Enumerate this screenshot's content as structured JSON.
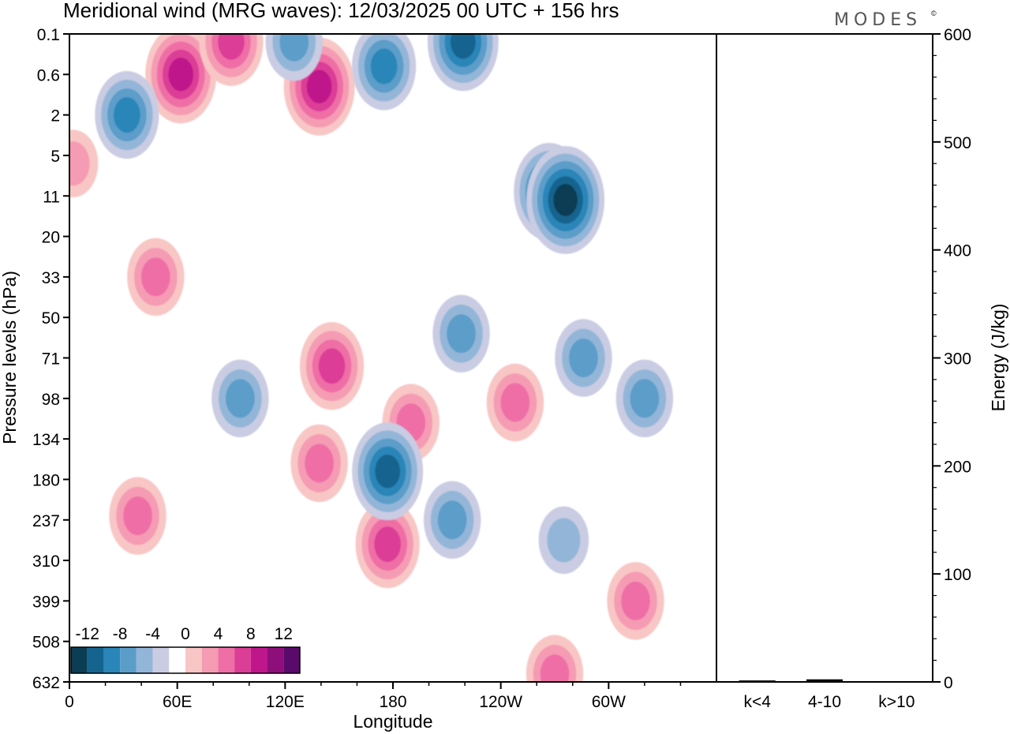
{
  "chart_data": [
    {
      "type": "heatmap",
      "title": "Meridional wind (MRG waves):  12/03/2025  00 UTC  + 156 hrs",
      "xlabel": "Longitude",
      "ylabel": "Pressure levels (hPa)",
      "x_ticks": [
        "0",
        "60E",
        "120E",
        "180",
        "120W",
        "60W"
      ],
      "x_range_deg": [
        0,
        360
      ],
      "y_ticks": [
        "0.1",
        "0.6",
        "2",
        "5",
        "11",
        "20",
        "33",
        "50",
        "71",
        "98",
        "134",
        "180",
        "237",
        "310",
        "399",
        "508",
        "632"
      ],
      "y_axis_inverted": true,
      "colorbar": {
        "labels": [
          "-12",
          "-8",
          "-4",
          "0",
          "4",
          "8",
          "12"
        ],
        "levels": [
          -14,
          -12,
          -10,
          -8,
          -6,
          -4,
          -2,
          2,
          4,
          6,
          8,
          10,
          12,
          14
        ],
        "colors": [
          "#0b3d55",
          "#15648f",
          "#2a85b8",
          "#5b9dc9",
          "#93b6d8",
          "#c9cce2",
          "#ffffff",
          "#f8c6c4",
          "#f59bb4",
          "#ef6ea6",
          "#dc3d96",
          "#c0168c",
          "#8e0f7c",
          "#5a0a6b"
        ]
      },
      "features": [
        {
          "lon": 62,
          "level_idx": 1.0,
          "value": 10
        },
        {
          "lon": 90,
          "level_idx": 0.2,
          "value": 8
        },
        {
          "lon": 139,
          "level_idx": 1.3,
          "value": 10
        },
        {
          "lon": 146,
          "level_idx": 8.2,
          "value": 8
        },
        {
          "lon": 190,
          "level_idx": 9.6,
          "value": 6
        },
        {
          "lon": 177,
          "level_idx": 12.6,
          "value": 8
        },
        {
          "lon": 139,
          "level_idx": 10.6,
          "value": 6
        },
        {
          "lon": 38,
          "level_idx": 11.9,
          "value": 6
        },
        {
          "lon": 248,
          "level_idx": 9.1,
          "value": 6
        },
        {
          "lon": 315,
          "level_idx": 14.0,
          "value": 6
        },
        {
          "lon": 270,
          "level_idx": 15.8,
          "value": 6
        },
        {
          "lon": 2,
          "level_idx": 3.2,
          "value": 4
        },
        {
          "lon": 48,
          "level_idx": 6.0,
          "value": 6
        },
        {
          "lon": 32,
          "level_idx": 2.0,
          "value": -8
        },
        {
          "lon": 125,
          "level_idx": 0.2,
          "value": -6
        },
        {
          "lon": 177,
          "level_idx": 10.8,
          "value": -10
        },
        {
          "lon": 267,
          "level_idx": 3.9,
          "value": -10
        },
        {
          "lon": 276,
          "level_idx": 4.1,
          "value": -12
        },
        {
          "lon": 219,
          "level_idx": 0.2,
          "value": -10
        },
        {
          "lon": 175,
          "level_idx": 0.8,
          "value": -8
        },
        {
          "lon": 218,
          "level_idx": 7.4,
          "value": -6
        },
        {
          "lon": 286,
          "level_idx": 8.0,
          "value": -6
        },
        {
          "lon": 320,
          "level_idx": 9.0,
          "value": -6
        },
        {
          "lon": 95,
          "level_idx": 9.0,
          "value": -6
        },
        {
          "lon": 213,
          "level_idx": 12.0,
          "value": -6
        },
        {
          "lon": 275,
          "level_idx": 12.5,
          "value": -4
        }
      ]
    },
    {
      "type": "bar",
      "categories": [
        "k<4",
        "4-10",
        "k>10"
      ],
      "values": [
        1,
        2,
        0
      ],
      "ylabel": "Energy (J/kg)",
      "ylim": [
        0,
        600
      ],
      "y_ticks": [
        "0",
        "100",
        "200",
        "300",
        "400",
        "500",
        "600"
      ]
    }
  ],
  "brand": "MODES",
  "brand_mark": "©"
}
